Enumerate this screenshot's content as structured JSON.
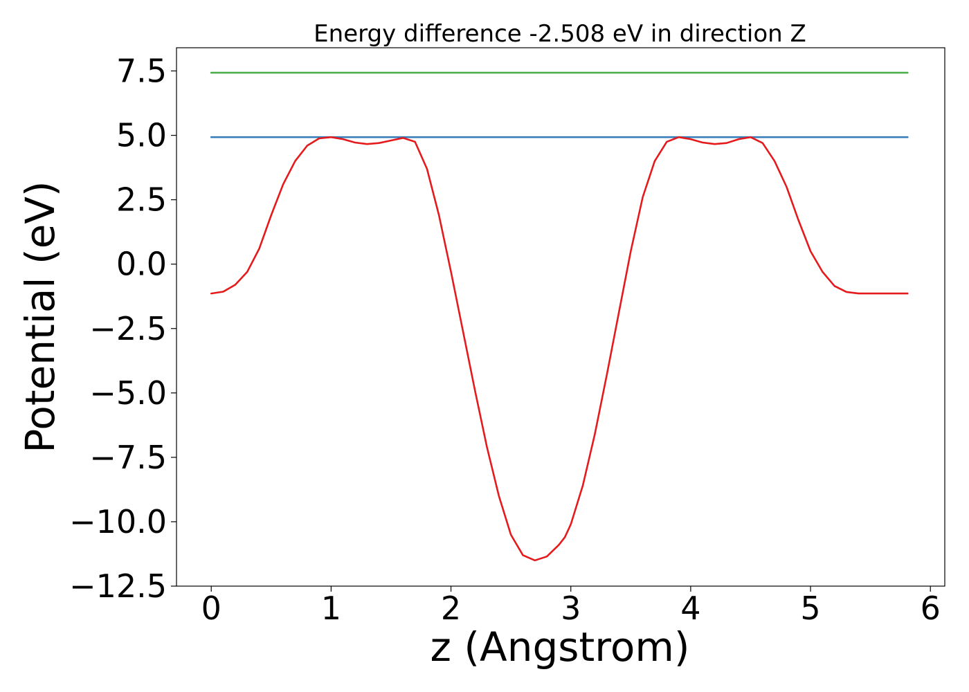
{
  "chart_data": {
    "type": "line",
    "title": "Energy difference -2.508 eV in direction Z",
    "xlabel": "z (Angstrom)",
    "ylabel": "Potential (eV)",
    "xlim": [
      -0.29,
      6.12
    ],
    "ylim": [
      -12.5,
      8.4
    ],
    "xticks": [
      0,
      1,
      2,
      3,
      4,
      5,
      6
    ],
    "xtick_labels": [
      "0",
      "1",
      "2",
      "3",
      "4",
      "5",
      "6"
    ],
    "yticks": [
      7.5,
      5.0,
      2.5,
      0.0,
      -2.5,
      -5.0,
      -7.5,
      -10.0,
      -12.5
    ],
    "ytick_labels": [
      "7.5",
      "5.0",
      "2.5",
      "0.0",
      "−2.5",
      "−5.0",
      "−7.5",
      "−10.0",
      "−12.5"
    ],
    "grid": false,
    "series": [
      {
        "color": "#e41a1c",
        "x": [
          0,
          0.1,
          0.2,
          0.3,
          0.4,
          0.5,
          0.6,
          0.7,
          0.8,
          0.9,
          1.0,
          1.1,
          1.2,
          1.3,
          1.4,
          1.5,
          1.6,
          1.7,
          1.8,
          1.9,
          2.0,
          2.1,
          2.2,
          2.3,
          2.4,
          2.5,
          2.6,
          2.7,
          2.8,
          2.9,
          2.95,
          3.0,
          3.1,
          3.2,
          3.3,
          3.4,
          3.5,
          3.6,
          3.7,
          3.8,
          3.9,
          4.0,
          4.1,
          4.2,
          4.3,
          4.4,
          4.5,
          4.6,
          4.7,
          4.8,
          4.9,
          5.0,
          5.1,
          5.2,
          5.3,
          5.4,
          5.5,
          5.6,
          5.7,
          5.81
        ],
        "y": [
          -1.14,
          -1.07,
          -0.8,
          -0.3,
          0.6,
          1.9,
          3.1,
          4.0,
          4.6,
          4.88,
          4.93,
          4.85,
          4.72,
          4.66,
          4.7,
          4.8,
          4.9,
          4.75,
          3.7,
          1.9,
          -0.3,
          -2.6,
          -4.9,
          -7.1,
          -9.0,
          -10.5,
          -11.3,
          -11.5,
          -11.35,
          -10.9,
          -10.6,
          -10.1,
          -8.6,
          -6.6,
          -4.3,
          -1.9,
          0.5,
          2.6,
          4.0,
          4.75,
          4.93,
          4.85,
          4.72,
          4.66,
          4.7,
          4.85,
          4.93,
          4.7,
          4.0,
          3.0,
          1.7,
          0.5,
          -0.3,
          -0.85,
          -1.08,
          -1.14,
          -1.14,
          -1.14,
          -1.14,
          -1.14
        ]
      },
      {
        "color": "#377eb8",
        "x": [
          0,
          5.81
        ],
        "y": [
          4.93,
          4.93
        ]
      },
      {
        "color": "#4daf4a",
        "x": [
          0,
          5.81
        ],
        "y": [
          7.43,
          7.43
        ]
      }
    ]
  }
}
